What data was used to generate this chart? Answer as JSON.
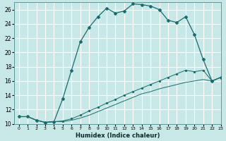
{
  "xlabel": "Humidex (Indice chaleur)",
  "xlim": [
    -0.5,
    23
  ],
  "ylim": [
    10,
    27
  ],
  "yticks": [
    10,
    12,
    14,
    16,
    18,
    20,
    22,
    24,
    26
  ],
  "xticks": [
    0,
    1,
    2,
    3,
    4,
    5,
    6,
    7,
    8,
    9,
    10,
    11,
    12,
    13,
    14,
    15,
    16,
    17,
    18,
    19,
    20,
    21,
    22,
    23
  ],
  "bg_color": "#c8e8e8",
  "grid_color": "#ffffff",
  "line_color": "#1a6b6b",
  "curve1_x": [
    0,
    1,
    2,
    3,
    4,
    5,
    6,
    7,
    8,
    9,
    10,
    11,
    12,
    13,
    14,
    15,
    16,
    17,
    18,
    19,
    20,
    21,
    22,
    23
  ],
  "curve1_y": [
    11,
    11,
    10.5,
    10.2,
    10.3,
    13.5,
    17.5,
    21.5,
    23.5,
    25,
    26.2,
    25.5,
    25.8,
    26.8,
    26.7,
    26.5,
    26.0,
    24.5,
    24.2,
    25,
    22.5,
    19.0,
    16.0,
    16.5
  ],
  "curve2_x": [
    0,
    1,
    2,
    3,
    4,
    5,
    6,
    7,
    8,
    9,
    10,
    11,
    12,
    13,
    14,
    15,
    16,
    17,
    18,
    19,
    20,
    21,
    22,
    23
  ],
  "curve2_y": [
    11,
    11,
    10.5,
    10.2,
    10.3,
    10.4,
    10.7,
    11.2,
    11.8,
    12.3,
    12.9,
    13.4,
    14.0,
    14.5,
    15.0,
    15.5,
    16.0,
    16.5,
    17.0,
    17.5,
    17.3,
    17.5,
    16.0,
    16.5
  ],
  "curve3_x": [
    0,
    1,
    2,
    3,
    4,
    5,
    6,
    7,
    8,
    9,
    10,
    11,
    12,
    13,
    14,
    15,
    16,
    17,
    18,
    19,
    20,
    21,
    22,
    23
  ],
  "curve3_y": [
    11,
    11,
    10.5,
    10.2,
    10.3,
    10.3,
    10.5,
    10.8,
    11.2,
    11.7,
    12.2,
    12.7,
    13.2,
    13.7,
    14.2,
    14.5,
    14.9,
    15.2,
    15.5,
    15.8,
    16.0,
    16.2,
    16.0,
    16.5
  ]
}
